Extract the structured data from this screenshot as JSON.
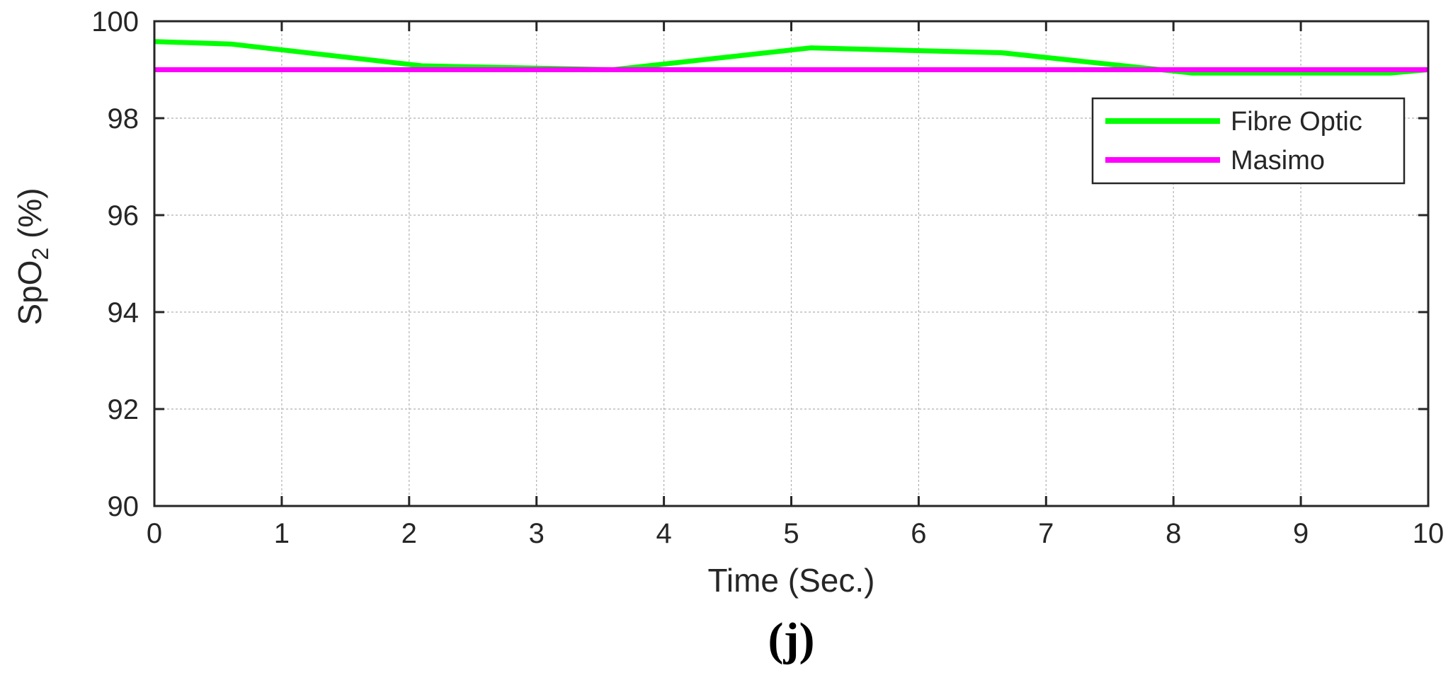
{
  "chart_data": {
    "type": "line",
    "xlabel": "Time (Sec.)",
    "ylabel_main": "SpO",
    "ylabel_sub": "2",
    "ylabel_unit": " (%)",
    "xlim": [
      0,
      10
    ],
    "ylim": [
      90,
      100
    ],
    "xticks": [
      0,
      1,
      2,
      3,
      4,
      5,
      6,
      7,
      8,
      9,
      10
    ],
    "yticks": [
      90,
      92,
      94,
      96,
      98,
      100
    ],
    "grid": true,
    "legend_position": "top-right",
    "panel_label": "(j)",
    "series": [
      {
        "name": "Fibre Optic",
        "color": "#00ff00",
        "x": [
          0,
          0.6,
          2.1,
          3.6,
          5.15,
          6.65,
          8.15,
          9.7,
          10
        ],
        "y": [
          99.58,
          99.53,
          99.08,
          99.0,
          99.45,
          99.35,
          98.93,
          98.93,
          99.0
        ]
      },
      {
        "name": "Masimo",
        "color": "#ff00ff",
        "x": [
          0,
          10
        ],
        "y": [
          99.0,
          99.0
        ]
      }
    ]
  }
}
